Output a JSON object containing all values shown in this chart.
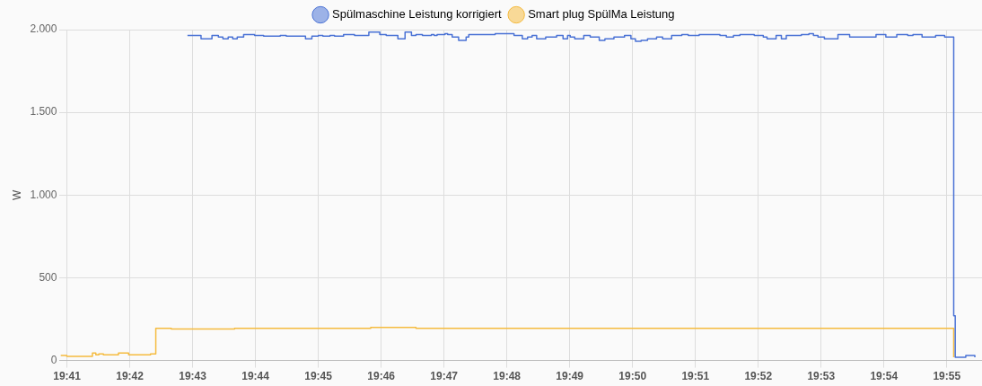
{
  "chart_data": {
    "type": "step",
    "ylabel": "W",
    "legend": "top",
    "grid": true,
    "marker": "none",
    "line_style": "solid",
    "xlim": [
      19.6814,
      19.926
    ],
    "ylim": [
      0,
      2000
    ],
    "xticks": [
      {
        "value": 19.683333,
        "label": "19:41"
      },
      {
        "value": 19.7,
        "label": "19:42"
      },
      {
        "value": 19.716667,
        "label": "19:43"
      },
      {
        "value": 19.733333,
        "label": "19:44"
      },
      {
        "value": 19.75,
        "label": "19:45"
      },
      {
        "value": 19.766667,
        "label": "19:46"
      },
      {
        "value": 19.783333,
        "label": "19:47"
      },
      {
        "value": 19.8,
        "label": "19:48"
      },
      {
        "value": 19.816667,
        "label": "19:49"
      },
      {
        "value": 19.833333,
        "label": "19:50"
      },
      {
        "value": 19.85,
        "label": "19:51"
      },
      {
        "value": 19.866667,
        "label": "19:52"
      },
      {
        "value": 19.883333,
        "label": "19:53"
      },
      {
        "value": 19.9,
        "label": "19:54"
      },
      {
        "value": 19.916667,
        "label": "19:55"
      }
    ],
    "yticks": [
      0,
      500,
      {
        "value": 1000,
        "label": "1.000"
      },
      {
        "value": 1500,
        "label": "1.500"
      },
      {
        "value": 2000,
        "label": "2.000"
      }
    ],
    "series": [
      {
        "name": "Spülmaschine Leistung korrigiert",
        "color": "#4a72d5",
        "x": [
          19.7153,
          19.7189,
          19.7218,
          19.7235,
          19.7247,
          19.7261,
          19.7273,
          19.7285,
          19.7302,
          19.7331,
          19.7355,
          19.7399,
          19.7415,
          19.7466,
          19.7483,
          19.75,
          19.7512,
          19.7531,
          19.7543,
          19.7567,
          19.7596,
          19.7634,
          19.7663,
          19.768,
          19.7711,
          19.773,
          19.7747,
          19.7759,
          19.7776,
          19.78,
          19.7807,
          19.7815,
          19.7836,
          19.7843,
          19.7855,
          19.7872,
          19.7892,
          19.7899,
          19.7969,
          19.8019,
          19.8041,
          19.8055,
          19.8067,
          19.8079,
          19.8103,
          19.8132,
          19.8149,
          19.8161,
          19.8168,
          19.818,
          19.8204,
          19.8221,
          19.8245,
          19.826,
          19.8284,
          19.8312,
          19.8329,
          19.8341,
          19.8356,
          19.8373,
          19.8397,
          19.8413,
          19.8437,
          19.8464,
          19.8481,
          19.851,
          19.8565,
          19.8582,
          19.8601,
          19.8618,
          19.8656,
          19.868,
          19.869,
          19.8714,
          19.8728,
          19.8741,
          19.8781,
          19.8801,
          19.8813,
          19.8825,
          19.8842,
          19.8878,
          19.8909,
          19.8979,
          19.9005,
          19.9034,
          19.9063,
          19.9077,
          19.9101,
          19.9137,
          19.9161,
          19.9185,
          19.9189,
          19.9217,
          19.9241
        ],
        "values": [
          1965,
          1945,
          1965,
          1955,
          1945,
          1955,
          1945,
          1955,
          1970,
          1965,
          1960,
          1965,
          1960,
          1945,
          1960,
          1965,
          1960,
          1965,
          1960,
          1970,
          1965,
          1985,
          1970,
          1965,
          1945,
          1985,
          1965,
          1970,
          1965,
          1970,
          1965,
          1970,
          1975,
          1970,
          1955,
          1935,
          1955,
          1970,
          1975,
          1965,
          1945,
          1955,
          1965,
          1945,
          1955,
          1965,
          1945,
          1965,
          1955,
          1945,
          1965,
          1955,
          1935,
          1945,
          1955,
          1965,
          1945,
          1930,
          1935,
          1945,
          1955,
          1945,
          1965,
          1970,
          1965,
          1970,
          1965,
          1955,
          1965,
          1970,
          1965,
          1955,
          1945,
          1965,
          1945,
          1965,
          1970,
          1975,
          1965,
          1955,
          1945,
          1970,
          1955,
          1970,
          1955,
          1970,
          1965,
          1970,
          1955,
          1965,
          1955,
          270,
          20,
          30,
          20
        ]
      },
      {
        "name": "Smart plug SpülMa Leistung",
        "color": "#f5bb3f",
        "x": [
          19.6817,
          19.6833,
          19.6901,
          19.691,
          19.6918,
          19.693,
          19.697,
          19.6997,
          19.7055,
          19.7069,
          19.711,
          19.7278,
          19.7639,
          19.7759,
          19.9185
        ],
        "values": [
          30,
          25,
          45,
          35,
          40,
          35,
          45,
          35,
          40,
          195,
          190,
          195,
          200,
          195,
          20
        ]
      }
    ]
  }
}
